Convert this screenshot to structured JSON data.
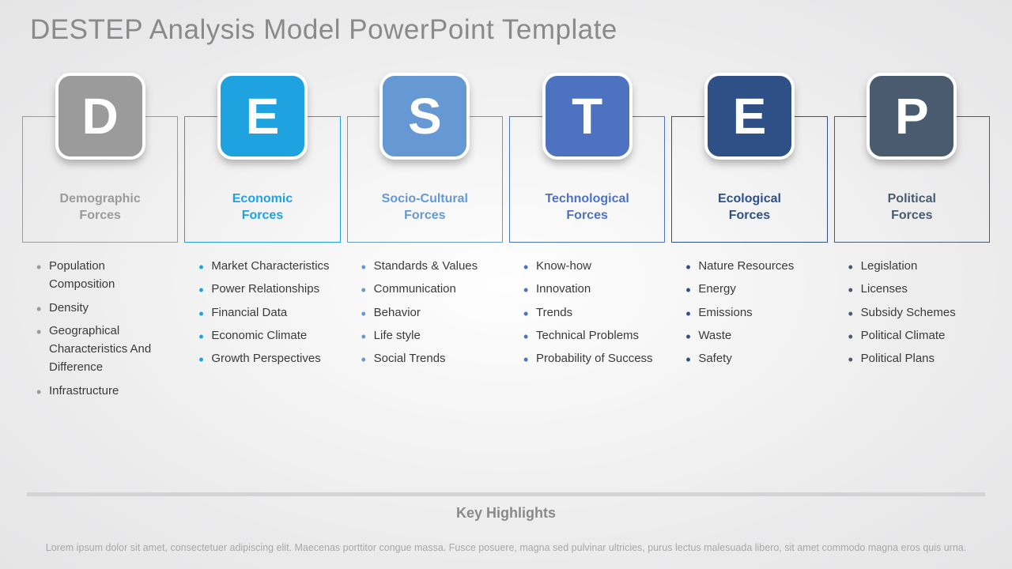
{
  "title": "DESTEP Analysis Model PowerPoint Template",
  "columns": [
    {
      "letter": "D",
      "heading": "Demographic\nForces",
      "tile_color": "#9b9b9b",
      "border_color": "#9b9b9b",
      "text_color": "#9b9b9b",
      "bullet_color": "#9b9b9b",
      "items": [
        "Population Composition",
        "Density",
        "Geographical Characteristics And Difference",
        "Infrastructure"
      ]
    },
    {
      "letter": "E",
      "heading": "Economic\nForces",
      "tile_color": "#1ea3e0",
      "border_color": "#1ea3e0",
      "text_color": "#1ea3e0",
      "bullet_color": "#1ea3e0",
      "items": [
        "Market Characteristics",
        "Power Relationships",
        "Financial Data",
        "Economic Climate",
        "Growth Perspectives"
      ]
    },
    {
      "letter": "S",
      "heading": "Socio-Cultural\nForces",
      "tile_color": "#6699d4",
      "border_color": "#6699d4",
      "text_color": "#6699d4",
      "bullet_color": "#6699d4",
      "items": [
        "Standards & Values",
        "Communication",
        "Behavior",
        "Life style",
        "Social Trends"
      ]
    },
    {
      "letter": "T",
      "heading": "Technological\nForces",
      "tile_color": "#4d73c0",
      "border_color": "#4d73c0",
      "text_color": "#4d73c0",
      "bullet_color": "#4d73c0",
      "items": [
        "Know-how",
        "Innovation",
        "Trends",
        "Technical Problems",
        "Probability of Success"
      ]
    },
    {
      "letter": "E",
      "heading": "Ecological\nForces",
      "tile_color": "#2f4f87",
      "border_color": "#2f4f87",
      "text_color": "#2f4f87",
      "bullet_color": "#2f4f87",
      "items": [
        "Nature Resources",
        "Energy",
        "Emissions",
        "Waste",
        "Safety"
      ]
    },
    {
      "letter": "P",
      "heading": "Political\nForces",
      "tile_color": "#4a5a6f",
      "border_color": "#4a5a6f",
      "text_color": "#4a5a6f",
      "bullet_color": "#4a5a6f",
      "items": [
        "Legislation",
        "Licenses",
        "Subsidy Schemes",
        "Political Climate",
        "Political Plans"
      ]
    }
  ],
  "key_highlights_title": "Key Highlights",
  "key_highlights_text": "Lorem ipsum dolor sit amet, consectetuer adipiscing elit. Maecenas porttitor congue massa. Fusce posuere, magna sed pulvinar ultricies, purus lectus malesuada libero, sit amet commodo magna eros quis urna."
}
